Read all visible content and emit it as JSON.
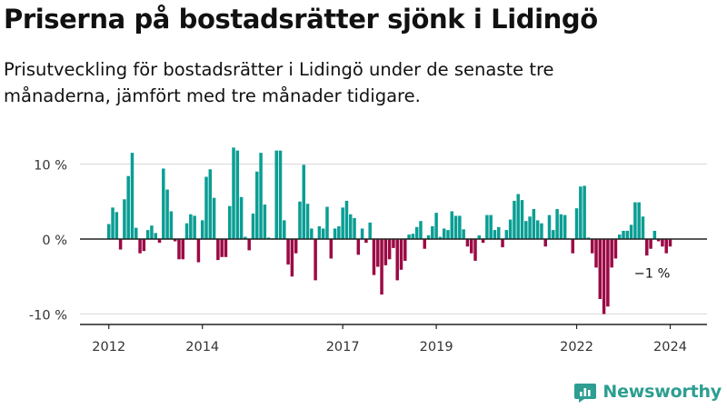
{
  "title": "Priserna på bostadsrätter sjönk i Lidingö",
  "subtitle": "Prisutveckling för bostadsrätter i Lidingö under de senaste tre månaderna, jämfört med tre månader tidigare.",
  "brand": {
    "name": "Newsworthy",
    "color": "#2d9e91",
    "icon": "newsworthy-logo-icon"
  },
  "chart_data": {
    "type": "bar",
    "x_start": "2012-01",
    "y_unit": "%",
    "ylim": [
      -12,
      14
    ],
    "yticks": [
      10,
      0,
      -10
    ],
    "ytick_labels": [
      "10 %",
      "0 %",
      "-10 %"
    ],
    "xticks": [
      "2012",
      "2014",
      "2017",
      "2019",
      "2022",
      "2024"
    ],
    "grid": true,
    "colors": {
      "positive": "#0a9e94",
      "negative": "#9b0a45"
    },
    "annotation": {
      "text": "−1 %",
      "target": "last"
    },
    "values": [
      2,
      4.2,
      3.6,
      -1.4,
      5.3,
      8.4,
      11.5,
      1.5,
      -1.9,
      -1.6,
      1.2,
      1.8,
      0.8,
      -0.5,
      9.4,
      6.6,
      3.7,
      -0.3,
      -2.7,
      -2.7,
      2.1,
      3.3,
      3.1,
      -3.1,
      2.5,
      8.3,
      9.3,
      5.5,
      -2.8,
      -2.4,
      -2.4,
      4.4,
      12.2,
      11.8,
      5.6,
      0.3,
      -1.5,
      3.4,
      9,
      11.5,
      4.6,
      0.2,
      0.1,
      11.8,
      11.8,
      2.5,
      -3.4,
      -5,
      -1.9,
      5,
      9.9,
      4.7,
      1.4,
      -5.5,
      1.7,
      1.4,
      4.3,
      -2.6,
      1.4,
      1.7,
      4.2,
      5.1,
      3.3,
      2.8,
      -2.1,
      1.4,
      -0.5,
      2.2,
      -4.8,
      -3.7,
      -7.4,
      -3.5,
      -2.7,
      -1.2,
      -5.5,
      -4.1,
      -2.9,
      0.6,
      0.7,
      1.6,
      2.4,
      -1.3,
      0.5,
      1.7,
      3.5,
      0.3,
      1.4,
      1.2,
      3.7,
      3.1,
      3.1,
      1.3,
      -1,
      -1.9,
      -2.9,
      0.5,
      -0.5,
      3.2,
      3.2,
      1.2,
      1.6,
      -1.1,
      1.2,
      2.6,
      5.1,
      6,
      5.2,
      2.4,
      3,
      4,
      2.5,
      2.1,
      -1,
      3.2,
      1.2,
      4,
      3.3,
      3.2,
      0.1,
      -1.9,
      4.1,
      7,
      7.1,
      0.2,
      -1.9,
      -3.8,
      -8,
      -10,
      -9,
      -3.8,
      -2.6,
      0.6,
      1.1,
      1.1,
      1.9,
      4.9,
      4.9,
      3,
      -2.2,
      -1.3,
      1.1,
      -0.3,
      -1,
      -1.9,
      -1
    ]
  }
}
